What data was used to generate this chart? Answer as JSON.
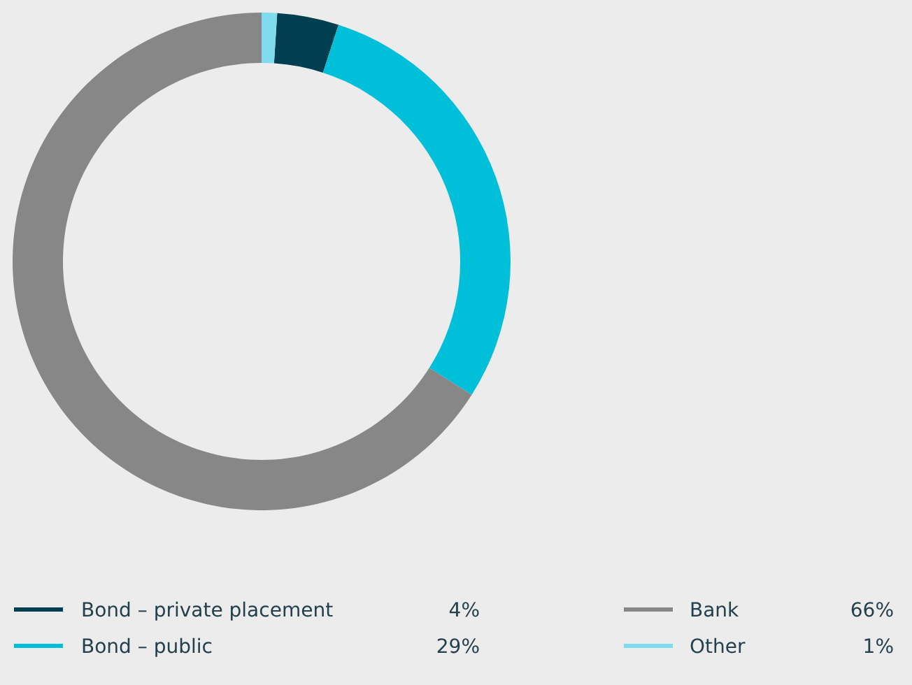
{
  "chart_data": {
    "type": "donut",
    "categories": [
      "Bond – private placement",
      "Bond – public",
      "Bank",
      "Other"
    ],
    "values": [
      4,
      29,
      66,
      1
    ],
    "colors": [
      "#003e52",
      "#00bfd9",
      "#878787",
      "#7fdbee"
    ],
    "value_labels": [
      "4%",
      "29%",
      "66%",
      "1%"
    ],
    "legend": "bottom"
  }
}
